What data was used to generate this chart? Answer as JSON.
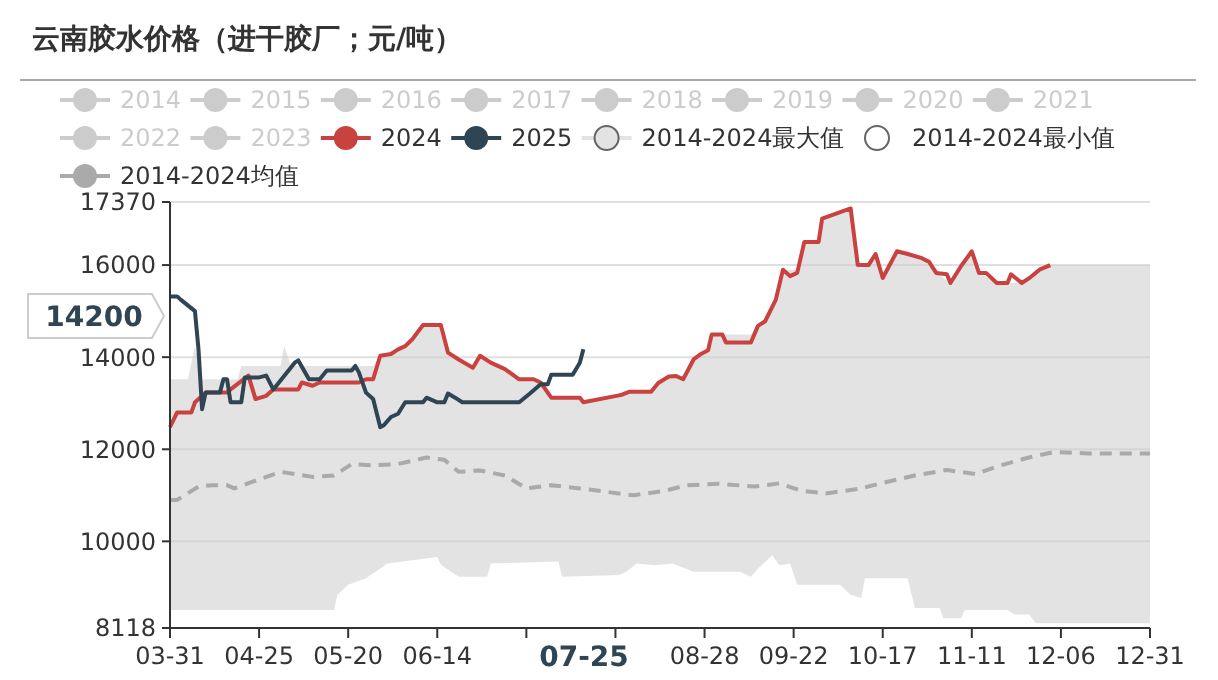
{
  "chart_data": {
    "type": "line",
    "title": "云南胶水价格（进干胶厂；元/吨）",
    "legend": "top",
    "grid": "y",
    "marker": "none",
    "xlim": [
      "--03-31",
      "--12-31"
    ],
    "xticks": [
      {
        "value": "--03-31",
        "label": "03-31"
      },
      {
        "value": "--04-25",
        "label": "04-25"
      },
      {
        "value": "--05-20",
        "label": "05-20"
      },
      {
        "value": "--06-14",
        "label": "06-14"
      },
      {
        "value": "--07-09",
        "label": null
      },
      {
        "value": "--08-03",
        "label": null
      },
      {
        "value": "--08-28",
        "label": "08-28"
      },
      {
        "value": "--09-22",
        "label": "09-22"
      },
      {
        "value": "--10-17",
        "label": "10-17"
      },
      {
        "value": "--11-11",
        "label": "11-11"
      },
      {
        "value": "--12-06",
        "label": "12-06"
      },
      {
        "value": "--12-31",
        "label": "12-31"
      }
    ],
    "ylim": [
      8118,
      17370
    ],
    "yticks": [
      8118,
      10000,
      12000,
      14000,
      16000,
      17370
    ],
    "annotations": [
      "14200",
      "07-25"
    ],
    "series": [
      {
        "name": "2014",
        "color": "#cccccc"
      },
      {
        "name": "2015",
        "color": "#cccccc"
      },
      {
        "name": "2016",
        "color": "#cccccc"
      },
      {
        "name": "2017",
        "color": "#cccccc"
      },
      {
        "name": "2018",
        "color": "#cccccc"
      },
      {
        "name": "2019",
        "color": "#cccccc"
      },
      {
        "name": "2020",
        "color": "#cccccc"
      },
      {
        "name": "2021",
        "color": "#cccccc"
      },
      {
        "name": "2022",
        "color": "#cccccc"
      },
      {
        "name": "2023",
        "color": "#cccccc"
      },
      {
        "name": "2024",
        "color": "#c9423f",
        "x": [
          "--03-31",
          "--04-02",
          "--04-06",
          "--04-07",
          "--04-10",
          "--04-16",
          "--04-17",
          "--04-22",
          "--04-24",
          "--04-27",
          "--04-29",
          "--05-06",
          "--05-07",
          "--05-10",
          "--05-12",
          "--05-23",
          "--05-25",
          "--05-27",
          "--05-29",
          "--06-01",
          "--06-03",
          "--06-05",
          "--06-07",
          "--06-10",
          "--06-15",
          "--06-17",
          "--06-20",
          "--06-24",
          "--06-26",
          "--06-29",
          "--07-03",
          "--07-07",
          "--07-11",
          "--07-13",
          "--07-16",
          "--07-24",
          "--07-25",
          "--08-04",
          "--08-05",
          "--08-07",
          "--08-13",
          "--08-15",
          "--08-18",
          "--08-20",
          "--08-22",
          "--08-25",
          "--08-27",
          "--08-29",
          "--08-30",
          "--09-02",
          "--09-03",
          "--09-10",
          "--09-12",
          "--09-14",
          "--09-17",
          "--09-19",
          "--09-21",
          "--09-23",
          "--09-25",
          "--09-29",
          "--09-30",
          "--10-08",
          "--10-10",
          "--10-13",
          "--10-15",
          "--10-17",
          "--10-21",
          "--10-24",
          "--10-28",
          "--10-30",
          "--11-01",
          "--11-04",
          "--11-05",
          "--11-08",
          "--11-11",
          "--11-13",
          "--11-15",
          "--11-18",
          "--11-21",
          "--11-22",
          "--11-25",
          "--11-27",
          "--11-30",
          "--12-03"
        ],
        "values": [
          12480,
          12800,
          12800,
          13020,
          13230,
          13230,
          13300,
          13600,
          13090,
          13160,
          13300,
          13300,
          13450,
          13380,
          13450,
          13450,
          13520,
          13520,
          14030,
          14070,
          14170,
          14240,
          14390,
          14700,
          14700,
          14100,
          13950,
          13770,
          14030,
          13880,
          13740,
          13520,
          13520,
          13450,
          13120,
          13120,
          13020,
          13170,
          13190,
          13250,
          13250,
          13440,
          13580,
          13590,
          13520,
          13960,
          14070,
          14150,
          14490,
          14490,
          14320,
          14320,
          14680,
          14780,
          15250,
          15900,
          15760,
          15830,
          16500,
          16500,
          17010,
          17230,
          16000,
          16000,
          16240,
          15720,
          16300,
          16240,
          16150,
          16070,
          15830,
          15800,
          15610,
          15980,
          16300,
          15830,
          15830,
          15610,
          15610,
          15800,
          15610,
          15710,
          15900,
          16000
        ]
      },
      {
        "name": "2025",
        "color": "#2f4554",
        "x": [
          "--03-31",
          "--04-02",
          "--04-03",
          "--04-07",
          "--04-08",
          "--04-09",
          "--04-10",
          "--04-14",
          "--04-15",
          "--04-16",
          "--04-17",
          "--04-20",
          "--04-21",
          "--04-25",
          "--04-27",
          "--04-29",
          "--05-05",
          "--05-06",
          "--05-09",
          "--05-12",
          "--05-14",
          "--05-21",
          "--05-22",
          "--05-23",
          "--05-25",
          "--05-27",
          "--05-29",
          "--05-30",
          "--06-01",
          "--06-03",
          "--06-05",
          "--06-10",
          "--06-11",
          "--06-14",
          "--06-16",
          "--06-17",
          "--06-19",
          "--06-21",
          "--07-07",
          "--07-10",
          "--07-13",
          "--07-15",
          "--07-16",
          "--07-22",
          "--07-24",
          "--07-25"
        ],
        "values": [
          15320,
          15320,
          15250,
          15000,
          14170,
          12870,
          13230,
          13230,
          13520,
          13520,
          13020,
          13020,
          13560,
          13560,
          13600,
          13300,
          13880,
          13930,
          13520,
          13520,
          13710,
          13710,
          13810,
          13670,
          13230,
          13090,
          12480,
          12520,
          12700,
          12770,
          13020,
          13020,
          13120,
          13020,
          13020,
          13210,
          13120,
          13020,
          13020,
          13210,
          13410,
          13410,
          13620,
          13620,
          13880,
          14170
        ]
      },
      {
        "name": "2014-2024最大值",
        "type": "area",
        "color": "#e3e3e3",
        "x": [
          "--03-31",
          "--04-05",
          "--04-07",
          "--04-09",
          "--04-19",
          "--04-20",
          "--05-01",
          "--05-02",
          "--05-04",
          "--05-27",
          "--05-29",
          "--06-01",
          "--06-03",
          "--06-05",
          "--06-07",
          "--06-10",
          "--06-15",
          "--06-17",
          "--06-20",
          "--06-24",
          "--06-26",
          "--06-29",
          "--07-03",
          "--07-07",
          "--07-13",
          "--07-16",
          "--07-24",
          "--07-25",
          "--08-04",
          "--08-07",
          "--08-13",
          "--08-15",
          "--08-18",
          "--08-22",
          "--08-25",
          "--08-29",
          "--08-30",
          "--09-10",
          "--09-12",
          "--09-14",
          "--09-17",
          "--09-19",
          "--09-23",
          "--09-25",
          "--09-29",
          "--09-30",
          "--10-08",
          "--10-10",
          "--10-13",
          "--10-15",
          "--10-17",
          "--10-21",
          "--10-28",
          "--11-01",
          "--11-05",
          "--11-11",
          "--11-13",
          "--11-18",
          "--11-25",
          "--11-30",
          "--12-03",
          "--12-31"
        ],
        "values": [
          13520,
          13520,
          14240,
          13520,
          13520,
          13810,
          13810,
          14240,
          13810,
          13810,
          14030,
          14070,
          14170,
          14240,
          14390,
          14700,
          14700,
          14100,
          13950,
          13770,
          14030,
          13880,
          13740,
          13520,
          13450,
          13120,
          13120,
          13020,
          13170,
          13250,
          13250,
          13440,
          13580,
          13580,
          13960,
          14150,
          14490,
          14490,
          14680,
          14780,
          15250,
          15900,
          15900,
          16500,
          16500,
          17010,
          17230,
          16000,
          16000,
          16240,
          15720,
          16300,
          16150,
          15830,
          15610,
          16300,
          15830,
          15610,
          15610,
          15900,
          16000,
          16000
        ]
      },
      {
        "name": "2014-2024最小值",
        "type": "area",
        "color": "#ffffff",
        "x": [
          "--03-31",
          "--05-16",
          "--05-17",
          "--05-20",
          "--05-25",
          "--05-31",
          "--06-14",
          "--06-15",
          "--06-20",
          "--06-28",
          "--06-29",
          "--07-18",
          "--07-19",
          "--08-04",
          "--08-06",
          "--08-09",
          "--08-14",
          "--08-19",
          "--08-25",
          "--09-07",
          "--09-10",
          "--09-12",
          "--09-16",
          "--09-18",
          "--09-21",
          "--09-23",
          "--10-05",
          "--10-08",
          "--10-11",
          "--10-12",
          "--10-24",
          "--10-26",
          "--11-02",
          "--11-03",
          "--11-08",
          "--11-09",
          "--11-21",
          "--11-23",
          "--11-27",
          "--11-29",
          "--12-31"
        ],
        "values": [
          8510,
          8510,
          8840,
          9060,
          9200,
          9520,
          9660,
          9490,
          9230,
          9230,
          9520,
          9560,
          9230,
          9270,
          9340,
          9520,
          9480,
          9520,
          9340,
          9340,
          9230,
          9410,
          9700,
          9480,
          9520,
          9060,
          9060,
          8840,
          8770,
          9200,
          9200,
          8550,
          8550,
          8330,
          8330,
          8510,
          8510,
          8410,
          8410,
          8220,
          8220
        ]
      },
      {
        "name": "2014-2024均值",
        "line_style": "dashed",
        "color": "#aaaaaa",
        "x": [
          "--03-31",
          "--04-02",
          "--04-08",
          "--04-12",
          "--04-16",
          "--04-18",
          "--04-23",
          "--05-01",
          "--05-10",
          "--05-16",
          "--05-21",
          "--05-27",
          "--06-03",
          "--06-11",
          "--06-16",
          "--06-20",
          "--06-26",
          "--07-03",
          "--07-09",
          "--07-16",
          "--07-24",
          "--08-01",
          "--08-08",
          "--08-17",
          "--08-23",
          "--09-01",
          "--09-11",
          "--09-18",
          "--09-24",
          "--10-01",
          "--10-11",
          "--10-16",
          "--10-26",
          "--11-04",
          "--11-12",
          "--11-19",
          "--11-27",
          "--12-04",
          "--12-14",
          "--12-31"
        ],
        "values": [
          10900,
          10900,
          11190,
          11220,
          11220,
          11150,
          11290,
          11510,
          11400,
          11430,
          11680,
          11650,
          11680,
          11820,
          11770,
          11510,
          11540,
          11430,
          11150,
          11220,
          11150,
          11070,
          11000,
          11100,
          11220,
          11250,
          11190,
          11260,
          11100,
          11040,
          11150,
          11250,
          11430,
          11550,
          11460,
          11650,
          11820,
          11940,
          11910,
          11910
        ]
      }
    ]
  }
}
